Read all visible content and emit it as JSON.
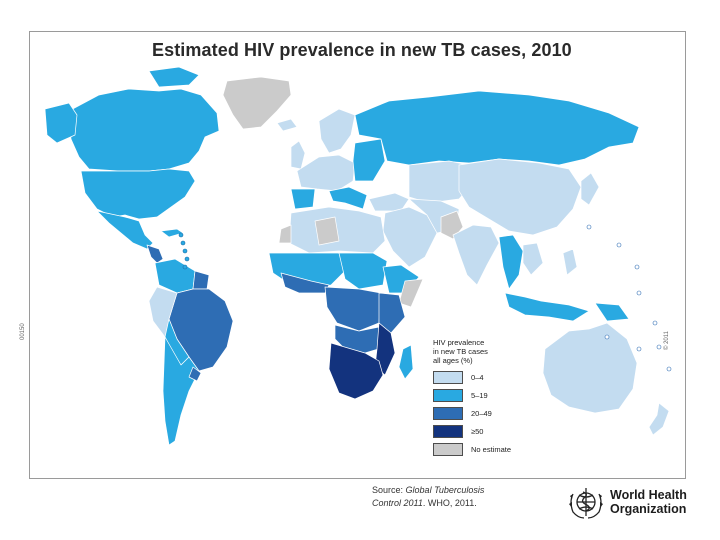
{
  "title": "Estimated HIV prevalence in new TB cases, 2010",
  "legend": {
    "title_lines": [
      "HIV prevalence",
      "in new TB cases",
      "all ages (%)"
    ],
    "items": [
      {
        "label": "0–4",
        "color": "#c3dcf0"
      },
      {
        "label": "5–19",
        "color": "#29a9e1"
      },
      {
        "label": "20–49",
        "color": "#2e6db4"
      },
      {
        "label": "≥50",
        "color": "#13337e"
      },
      {
        "label": "No estimate",
        "color": "#cbcbcb"
      }
    ]
  },
  "map_code_left": "00150",
  "map_code_right": "© 2011",
  "source": {
    "prefix": "Source:",
    "title_italic_1": "Global Tuberculosis",
    "title_italic_2": "Control 2011",
    "suffix": ". WHO, 2011."
  },
  "organization": {
    "name_line1": "World Health",
    "name_line2": "Organization"
  },
  "colors": {
    "low": "#c3dcf0",
    "mid": "#29a9e1",
    "high": "#2e6db4",
    "very_high": "#13337e",
    "no_estimate": "#cbcbcb",
    "border": "#ffffff"
  }
}
